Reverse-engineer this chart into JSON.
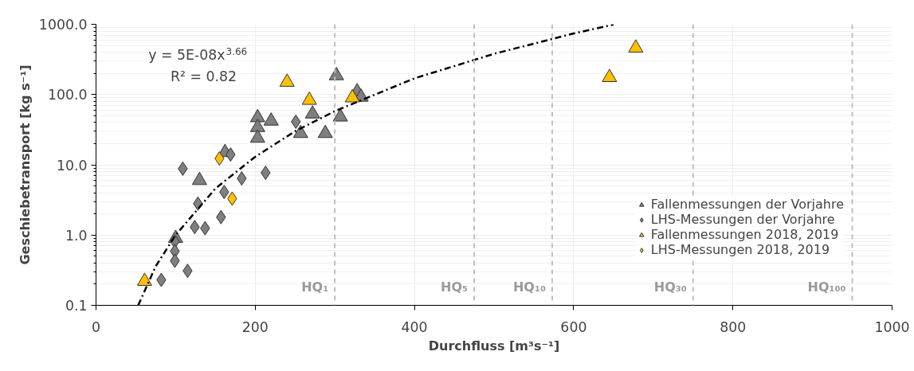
{
  "chart_data": {
    "type": "scatter",
    "xlabel": "Durchfluss [m³s⁻¹]",
    "ylabel": "Geschiebetransport [kg s⁻¹]",
    "xlim": [
      0,
      1000
    ],
    "xticks": [
      0,
      200,
      400,
      600,
      800,
      1000
    ],
    "ylim": [
      0.1,
      1000
    ],
    "yticks": [
      {
        "value": 0.1,
        "label": "0.1"
      },
      {
        "value": 1,
        "label": "1.0"
      },
      {
        "value": 10,
        "label": "10.0"
      },
      {
        "value": 100,
        "label": "100.0"
      },
      {
        "value": 1000,
        "label": "1000.0"
      }
    ],
    "log": "y",
    "grid": true,
    "legend": "bottom right",
    "series": [
      {
        "name": "Fallenmessungen der Vorjahre",
        "color": "#7f7f7f",
        "marker": "triangle",
        "x": [
          100,
          130,
          162,
          203,
          203,
          203,
          220,
          302,
          272,
          257,
          288,
          307,
          328,
          333
        ],
        "values": [
          0.9,
          6,
          15,
          47,
          34,
          24,
          42,
          186,
          53,
          28,
          28,
          48,
          110,
          92
        ]
      },
      {
        "name": "LHS-Messungen der Vorjahre",
        "color": "#7f7f7f",
        "marker": "diamond",
        "x": [
          109,
          128,
          124,
          137,
          99,
          99,
          99,
          115,
          82,
          169,
          183,
          161,
          157,
          213,
          251
        ],
        "values": [
          8.8,
          2.8,
          1.3,
          1.25,
          0.81,
          0.59,
          0.43,
          0.31,
          0.23,
          14,
          6.4,
          4.1,
          1.8,
          7.7,
          41
        ]
      },
      {
        "name": "Fallenmessungen 2018, 2019",
        "color": "#ffc000",
        "marker": "triangle",
        "x": [
          61,
          240,
          268,
          322,
          645,
          678
        ],
        "values": [
          0.22,
          150,
          83,
          90,
          175,
          460
        ]
      },
      {
        "name": "LHS-Messungen 2018, 2019",
        "color": "#ffc000",
        "marker": "diamond",
        "x": [
          155,
          171
        ],
        "values": [
          12.3,
          3.3
        ]
      },
      {
        "type": "line",
        "color": "#000000",
        "line_style": "dashed",
        "x": [
          53,
          75,
          100,
          150,
          200,
          250,
          300,
          400,
          500,
          600,
          650
        ],
        "values": [
          0.1,
          0.36,
          1.0,
          4.6,
          13,
          30,
          58,
          170,
          380,
          740,
          990
        ]
      }
    ],
    "ref_lines": [
      {
        "axis": "x",
        "value": 300,
        "label": "HQ₁",
        "color": "#bfbfbf",
        "line_style": "dashed"
      },
      {
        "axis": "x",
        "value": 475,
        "label": "HQ₅",
        "color": "#bfbfbf",
        "line_style": "dashed"
      },
      {
        "axis": "x",
        "value": 573,
        "label": "HQ₁₀",
        "color": "#bfbfbf",
        "line_style": "dashed"
      },
      {
        "axis": "x",
        "value": 750,
        "label": "HQ₃₀",
        "color": "#bfbfbf",
        "line_style": "dashed"
      },
      {
        "axis": "x",
        "value": 950,
        "label": "HQ₁₀₀",
        "color": "#bfbfbf",
        "line_style": "dashed"
      }
    ],
    "annotations": [
      "y = 5E-08x$^{3.66}$",
      "R² = 0.82"
    ]
  }
}
